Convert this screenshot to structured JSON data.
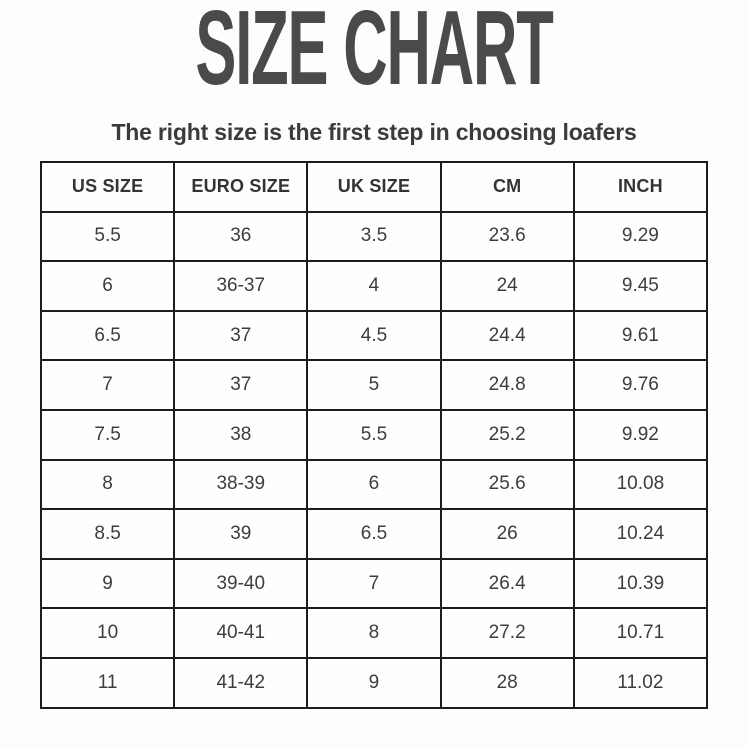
{
  "page": {
    "title": "SIZE CHART",
    "subtitle": "The right size is the first step in choosing loafers"
  },
  "colors": {
    "title_text": "#4a4a4a",
    "subtitle_text": "#3b3b3b",
    "table_text": "#3d3d3d",
    "table_border": "#1d1d1d",
    "background": "#fdfdfd"
  },
  "chart_data": {
    "type": "table",
    "title": "SIZE CHART",
    "subtitle": "The right size is the first step in choosing loafers",
    "headers": [
      "US SIZE",
      "EURO SIZE",
      "UK SIZE",
      "CM",
      "INCH"
    ],
    "rows": [
      [
        "5.5",
        "36",
        "3.5",
        "23.6",
        "9.29"
      ],
      [
        "6",
        "36-37",
        "4",
        "24",
        "9.45"
      ],
      [
        "6.5",
        "37",
        "4.5",
        "24.4",
        "9.61"
      ],
      [
        "7",
        "37",
        "5",
        "24.8",
        "9.76"
      ],
      [
        "7.5",
        "38",
        "5.5",
        "25.2",
        "9.92"
      ],
      [
        "8",
        "38-39",
        "6",
        "25.6",
        "10.08"
      ],
      [
        "8.5",
        "39",
        "6.5",
        "26",
        "10.24"
      ],
      [
        "9",
        "39-40",
        "7",
        "26.4",
        "10.39"
      ],
      [
        "10",
        "40-41",
        "8",
        "27.2",
        "10.71"
      ],
      [
        "11",
        "41-42",
        "9",
        "28",
        "11.02"
      ]
    ]
  }
}
